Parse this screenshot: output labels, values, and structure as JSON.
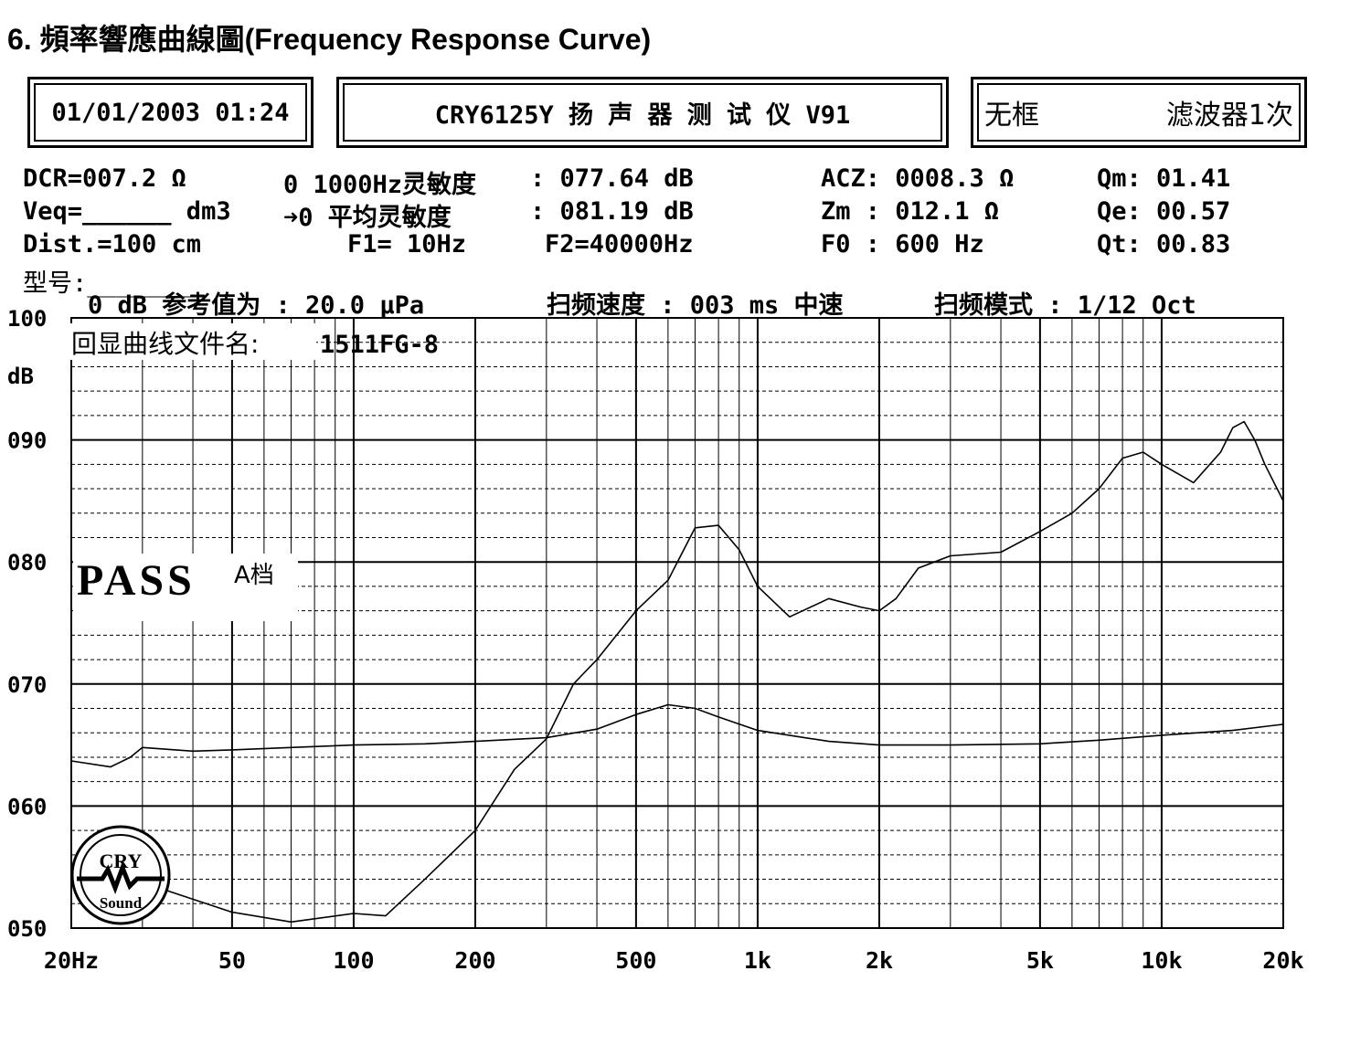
{
  "heading": "6.  頻率響應曲線圖(Frequency Response Curve)",
  "header_boxes": {
    "datetime": "01/01/2003 01:24",
    "instrument": "CRY6125Y 扬 声 器 测 试 仪  V91",
    "mode": "无框",
    "filter": "滤波器1次"
  },
  "params": {
    "row1": {
      "dcr": "DCR=007.2 Ω",
      "sens_label": "0 1000Hz灵敏度",
      "sens_value": ": 077.64 dB",
      "acz": "ACZ: 0008.3 Ω",
      "qm": "Qm: 01.41"
    },
    "row2": {
      "veq": "Veq=______ dm3",
      "avg_label": "➜0 平均灵敏度",
      "avg_value": ": 081.19 dB",
      "zm": "Zm :  012.1 Ω",
      "qe": "Qe: 00.57"
    },
    "row3": {
      "dist": "Dist.=100 cm",
      "f1": "F1=   10Hz",
      "f2": "F2=40000Hz",
      "f0": "F0 :   600 Hz",
      "qt": "Qt: 00.83"
    },
    "row4": {
      "model": "型号:________"
    },
    "row5": {
      "ref": "0 dB 参考值为 : 20.0 μPa",
      "sweep_speed": "扫频速度 : 003 ms 中速",
      "sweep_mode": "扫频模式 : 1/12 Oct"
    }
  },
  "overlay": {
    "filename_label": "回显曲线文件名:",
    "filename": "1511FG-8",
    "pass": "PASS",
    "grade": "A档",
    "logo_top": "CRY",
    "logo_bottom": "Sound"
  },
  "colors": {
    "line": "#000000",
    "background": "#ffffff",
    "grid": "#000000"
  },
  "chart_data": {
    "type": "line",
    "title": "",
    "xlabel": "",
    "ylabel": "dB",
    "x_scale": "log",
    "xlim": [
      20,
      20000
    ],
    "ylim": [
      50,
      100
    ],
    "grid": true,
    "y_ticks": [
      50,
      60,
      70,
      80,
      90,
      100
    ],
    "y_tick_labels": [
      "050",
      "060",
      "070",
      "080",
      "090",
      "100"
    ],
    "y_unit_label": "dB",
    "x_ticks": [
      20,
      50,
      100,
      200,
      500,
      1000,
      2000,
      5000,
      10000,
      20000
    ],
    "x_tick_labels": [
      "20Hz",
      "50",
      "100",
      "200",
      "500",
      "1k",
      "2k",
      "5k",
      "10k",
      "20k"
    ],
    "series": [
      {
        "x": [
          25,
          35,
          50,
          70,
          100,
          120,
          150,
          200,
          250,
          300,
          350,
          400,
          500,
          600,
          700,
          800,
          900,
          1000,
          1200,
          1500,
          1800,
          2000,
          2200,
          2500,
          3000,
          4000,
          5000,
          6000,
          7000,
          8000,
          9000,
          10000,
          12000,
          14000,
          15000,
          16000,
          17000,
          18000,
          20000
        ],
        "y": [
          55.5,
          53,
          51.3,
          50.5,
          51.2,
          51,
          54,
          58,
          63,
          65.5,
          70,
          72,
          76,
          78.5,
          82.8,
          83,
          81,
          78,
          75.5,
          77,
          76.3,
          76,
          77,
          79.5,
          80.5,
          80.8,
          82.5,
          84,
          86,
          88.5,
          89,
          88,
          86.5,
          89,
          91,
          91.5,
          90,
          88,
          85
        ]
      },
      {
        "x": [
          20,
          25,
          28,
          30,
          40,
          50,
          70,
          100,
          150,
          200,
          300,
          400,
          500,
          600,
          700,
          800,
          1000,
          1500,
          2000,
          3000,
          5000,
          7000,
          10000,
          15000,
          20000
        ],
        "y": [
          63.7,
          63.2,
          64,
          64.8,
          64.5,
          64.6,
          64.8,
          65,
          65.1,
          65.3,
          65.6,
          66.3,
          67.5,
          68.3,
          68,
          67.3,
          66.2,
          65.3,
          65,
          65,
          65.1,
          65.4,
          65.8,
          66.2,
          66.7
        ]
      }
    ]
  }
}
